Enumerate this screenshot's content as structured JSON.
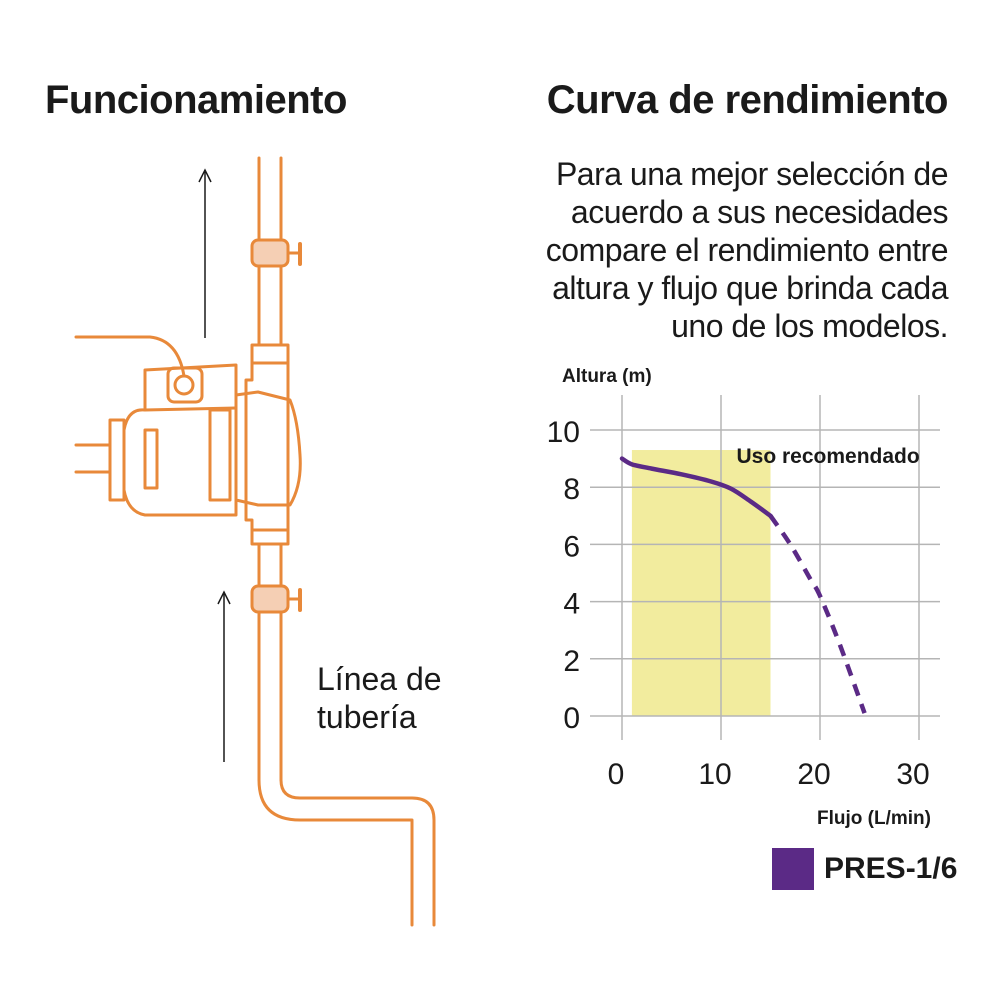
{
  "left_section": {
    "title": "Funcionamiento",
    "pipe_label_lines": [
      "Línea de",
      "tubería"
    ]
  },
  "right_section": {
    "title": "Curva de rendimiento",
    "intro_lines": [
      "Para una mejor selección de",
      "acuerdo a sus necesidades",
      "compare el rendimiento entre",
      "altura y flujo que brinda cada",
      "uno de los modelos."
    ]
  },
  "colors": {
    "pipe": "#e8893a",
    "valve_fill": "#f5cfb4",
    "curve": "#5b2a86",
    "recommended_zone": "#f2ec9e",
    "grid": "#b5b5b5"
  },
  "chart_data": {
    "type": "line",
    "ylabel": "Altura (m)",
    "xlabel": "Flujo (L/min)",
    "xlim": [
      0,
      30
    ],
    "ylim": [
      0,
      10
    ],
    "x_ticks": [
      0,
      10,
      20,
      30
    ],
    "y_ticks": [
      0,
      2,
      4,
      6,
      8,
      10
    ],
    "grid": true,
    "legend_position": "bottom-right",
    "series": [
      {
        "name": "PRES-1/6",
        "color": "#5b2a86",
        "solid": [
          {
            "x": 0,
            "y": 9.0
          },
          {
            "x": 1,
            "y": 8.8
          },
          {
            "x": 3,
            "y": 8.65
          },
          {
            "x": 6,
            "y": 8.45
          },
          {
            "x": 9,
            "y": 8.2
          },
          {
            "x": 11,
            "y": 7.95
          },
          {
            "x": 13,
            "y": 7.5
          },
          {
            "x": 15,
            "y": 7.0
          }
        ],
        "dashed": [
          {
            "x": 15,
            "y": 7.0
          },
          {
            "x": 17,
            "y": 6.0
          },
          {
            "x": 19,
            "y": 4.8
          },
          {
            "x": 20,
            "y": 4.2
          },
          {
            "x": 22,
            "y": 2.5
          },
          {
            "x": 24.5,
            "y": 0.1
          }
        ]
      }
    ],
    "annotations": [
      {
        "text": "Uso recomendado",
        "x_range": [
          1,
          15
        ],
        "y_range": [
          0,
          9.3
        ]
      }
    ]
  }
}
